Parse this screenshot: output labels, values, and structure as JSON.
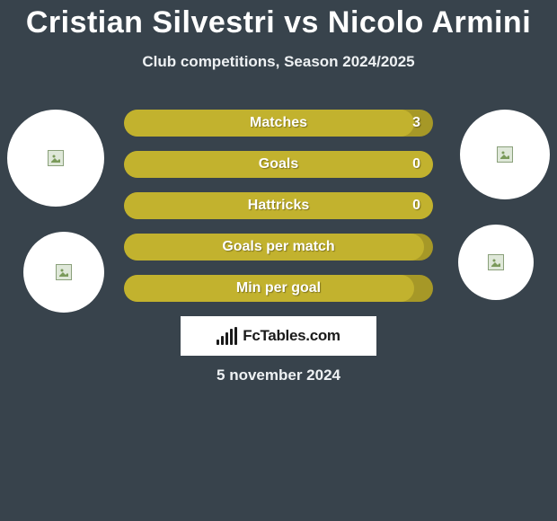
{
  "header": {
    "title": "Cristian Silvestri vs Nicolo Armini",
    "subtitle": "Club competitions, Season 2024/2025"
  },
  "colors": {
    "background": "#38434c",
    "bar_track": "#a69827",
    "bar_fill": "#c2b22e"
  },
  "avatars": {
    "left": [
      {
        "name": "player-left-1",
        "size": "large"
      },
      {
        "name": "player-left-2",
        "size": "small"
      }
    ],
    "right": [
      {
        "name": "player-right-1",
        "size": "large"
      },
      {
        "name": "player-right-2",
        "size": "small"
      }
    ]
  },
  "stats": [
    {
      "label": "Matches",
      "value": "3",
      "fill_pct": 94
    },
    {
      "label": "Goals",
      "value": "0",
      "fill_pct": 100
    },
    {
      "label": "Hattricks",
      "value": "0",
      "fill_pct": 100
    },
    {
      "label": "Goals per match",
      "value": "",
      "fill_pct": 97
    },
    {
      "label": "Min per goal",
      "value": "",
      "fill_pct": 94
    }
  ],
  "brand": {
    "text": "FcTables.com"
  },
  "footer": {
    "date": "5 november 2024"
  }
}
